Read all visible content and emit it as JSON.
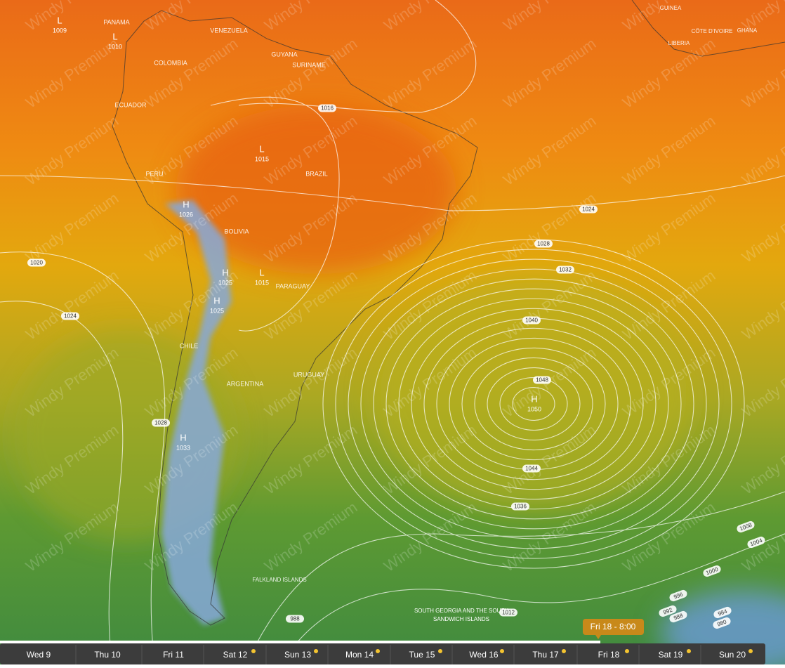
{
  "watermark": "Windy Premium",
  "countries": [
    "VENEZUELA",
    "COLOMBIA",
    "PANAMA",
    "GUYANA",
    "SURINAME",
    "ECUADOR",
    "PERU",
    "BRAZIL",
    "BOLIVIA",
    "PARAGUAY",
    "CHILE",
    "ARGENTINA",
    "URUGUAY",
    "FALKLAND ISLANDS",
    "GUINEA",
    "CÔTE D'IVOIRE",
    "GHANA",
    "LIBERIA"
  ],
  "region_lines": [
    "SOUTH GEORGIA AND THE SOUTH",
    "SANDWICH ISLANDS"
  ],
  "pressure_centers": [
    {
      "type": "L",
      "value": 1009
    },
    {
      "type": "L",
      "value": 1010
    },
    {
      "type": "L",
      "value": 1015
    },
    {
      "type": "H",
      "value": 1026
    },
    {
      "type": "H",
      "value": 1025
    },
    {
      "type": "L",
      "value": 1015
    },
    {
      "type": "H",
      "value": 1025
    },
    {
      "type": "H",
      "value": 1050
    },
    {
      "type": "H",
      "value": 1033
    }
  ],
  "isobar_labels": [
    1016,
    1024,
    1020,
    1028,
    1032,
    1024,
    1040,
    1048,
    1028,
    1044,
    1036,
    1012,
    1008,
    1004,
    1000,
    996,
    992,
    988,
    984,
    980,
    988
  ],
  "timeline": {
    "days": [
      "Wed 9",
      "Thu 10",
      "Fri 11",
      "Sat 12",
      "Sun 13",
      "Mon 14",
      "Tue 15",
      "Wed 16",
      "Thu 17",
      "Fri 18",
      "Sat 19",
      "Sun 20"
    ],
    "current": "Fri 18 - 8:00"
  }
}
